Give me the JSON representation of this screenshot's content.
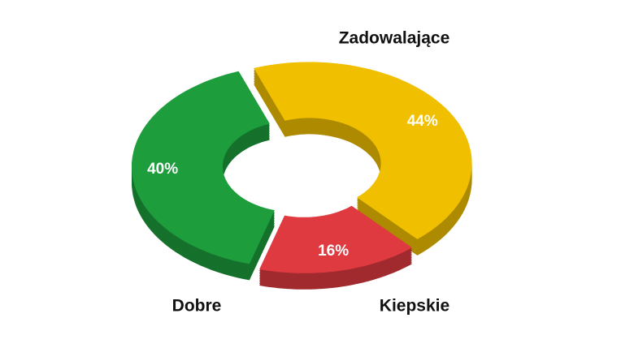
{
  "chart_data": {
    "type": "pie",
    "categories": [
      "Zadowalające",
      "Kiepskie",
      "Dobre"
    ],
    "values": [
      44,
      16,
      40
    ],
    "value_labels": [
      "44%",
      "16%",
      "40%"
    ],
    "colors": [
      "#f0bf00",
      "#de3a40",
      "#1d9d3c"
    ]
  }
}
